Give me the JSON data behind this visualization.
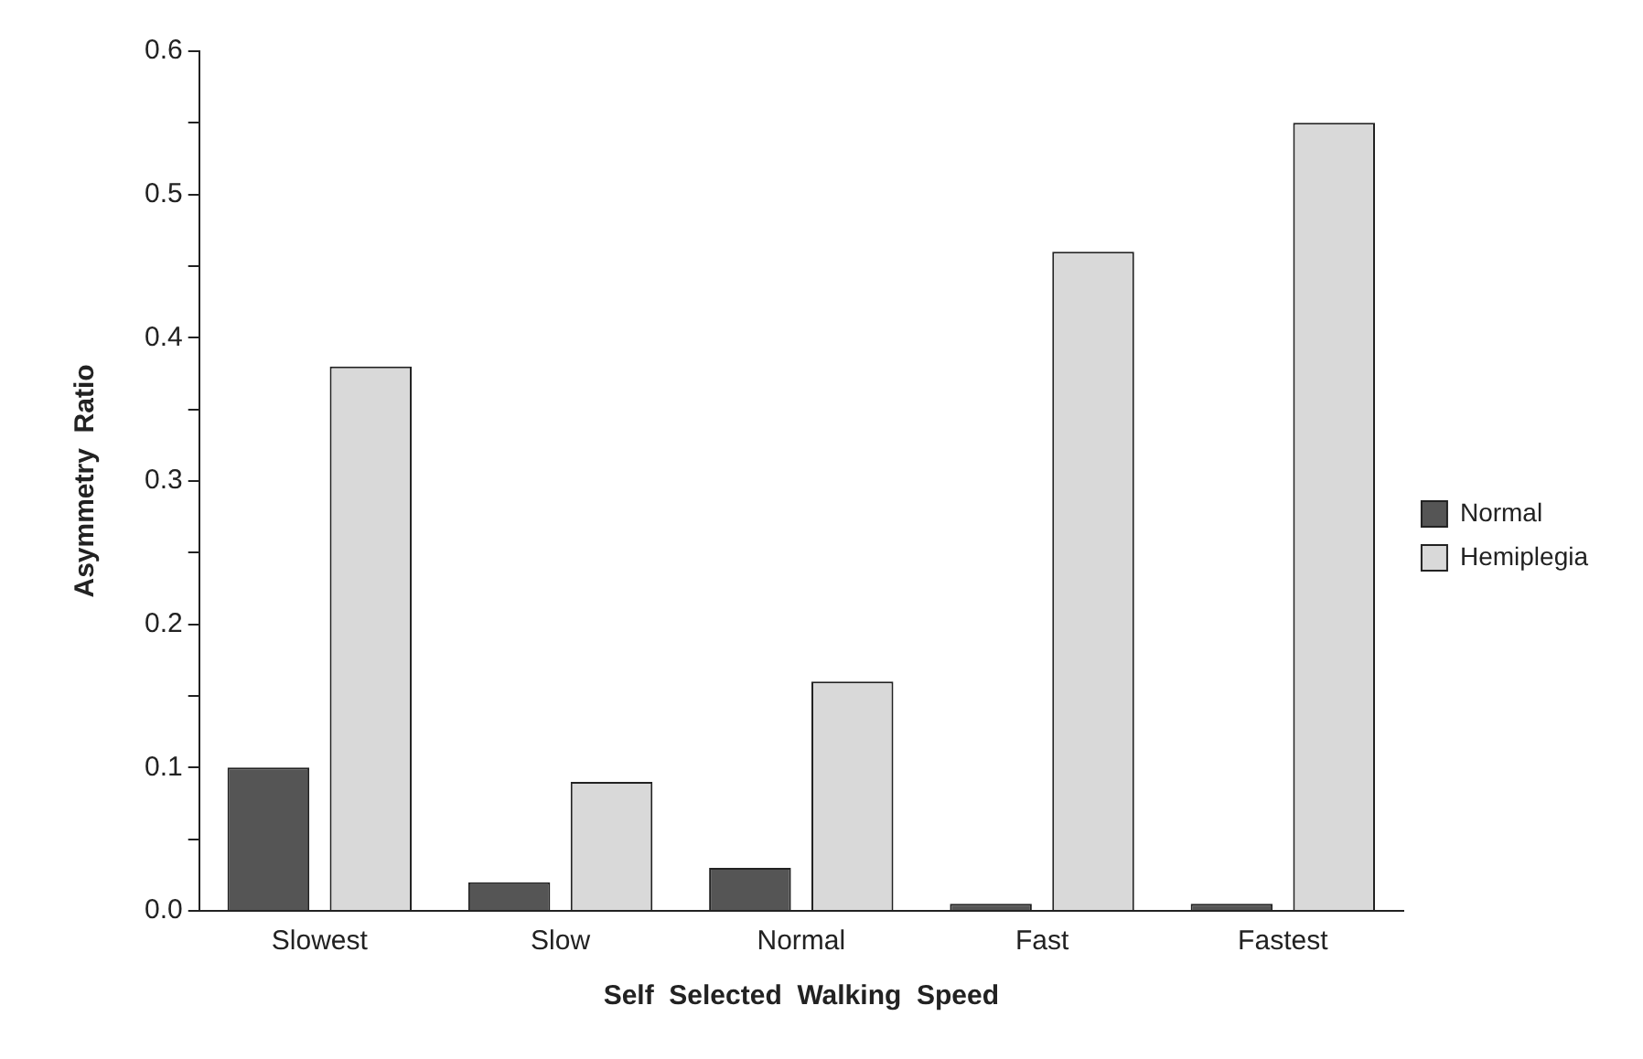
{
  "chart_data": {
    "type": "bar",
    "xlabel": "Self  Selected  Walking  Speed",
    "ylabel": "Asymmetry  Ratio",
    "categories": [
      "Slowest",
      "Slow",
      "Normal",
      "Fast",
      "Fastest"
    ],
    "series": [
      {
        "name": "Normal",
        "color": "#555555",
        "values": [
          0.1,
          0.02,
          0.03,
          0.005,
          0.005
        ]
      },
      {
        "name": "Hemiplegia",
        "color": "#d9d9d9",
        "values": [
          0.38,
          0.09,
          0.16,
          0.46,
          0.55
        ]
      }
    ],
    "ylim": [
      0,
      0.6
    ],
    "yticks": [
      {
        "value": 0,
        "label": "0.0"
      },
      {
        "value": 0.05,
        "label": null
      },
      {
        "value": 0.1,
        "label": "0.1"
      },
      {
        "value": 0.15,
        "label": null
      },
      {
        "value": 0.2,
        "label": "0.2"
      },
      {
        "value": 0.25,
        "label": null
      },
      {
        "value": 0.3,
        "label": "0.3"
      },
      {
        "value": 0.35,
        "label": null
      },
      {
        "value": 0.4,
        "label": "0.4"
      },
      {
        "value": 0.45,
        "label": null
      },
      {
        "value": 0.5,
        "label": "0.5"
      },
      {
        "value": 0.55,
        "label": null
      },
      {
        "value": 0.6,
        "label": "0.6"
      }
    ],
    "grid": false,
    "legend": "right"
  }
}
